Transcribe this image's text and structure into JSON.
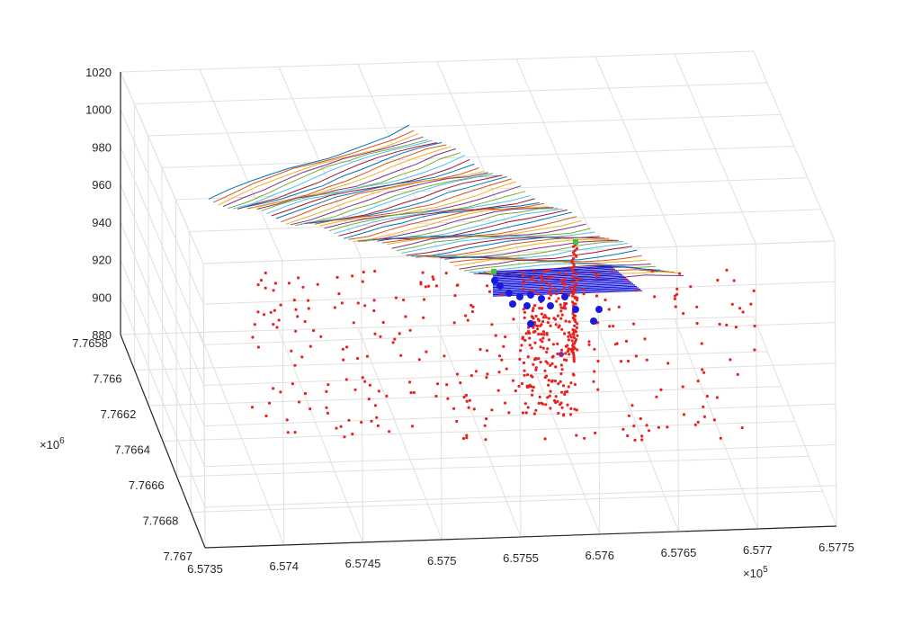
{
  "chart_data": {
    "type": "scatter",
    "title": "",
    "xlabel": "",
    "ylabel": "",
    "zlabel": "",
    "grid": true,
    "x_axis": {
      "ticks": [
        "6.5735",
        "6.574",
        "6.5745",
        "6.575",
        "6.5755",
        "6.576",
        "6.5765",
        "6.577",
        "6.5775"
      ],
      "range": [
        6.5735,
        6.5775
      ],
      "multiplier": "×10",
      "multiplier_exp": "5"
    },
    "y_axis": {
      "ticks": [
        "7.7658",
        "7.766",
        "7.7662",
        "7.7664",
        "7.7666",
        "7.7668",
        "7.767"
      ],
      "range": [
        7.7658,
        7.767
      ],
      "multiplier": "×10",
      "multiplier_exp": "6"
    },
    "z_axis": {
      "ticks": [
        "880",
        "900",
        "920",
        "940",
        "960",
        "980",
        "1000",
        "1020"
      ],
      "range": [
        880,
        1020
      ]
    },
    "series_colors": {
      "events": "#e8231f",
      "large_events": "#1a1adc",
      "stations": "#3ec43e",
      "contours": [
        "#0072bd",
        "#d95319",
        "#edb120",
        "#7e2f8e",
        "#77ac30",
        "#4dbeee",
        "#a2142f"
      ]
    }
  }
}
